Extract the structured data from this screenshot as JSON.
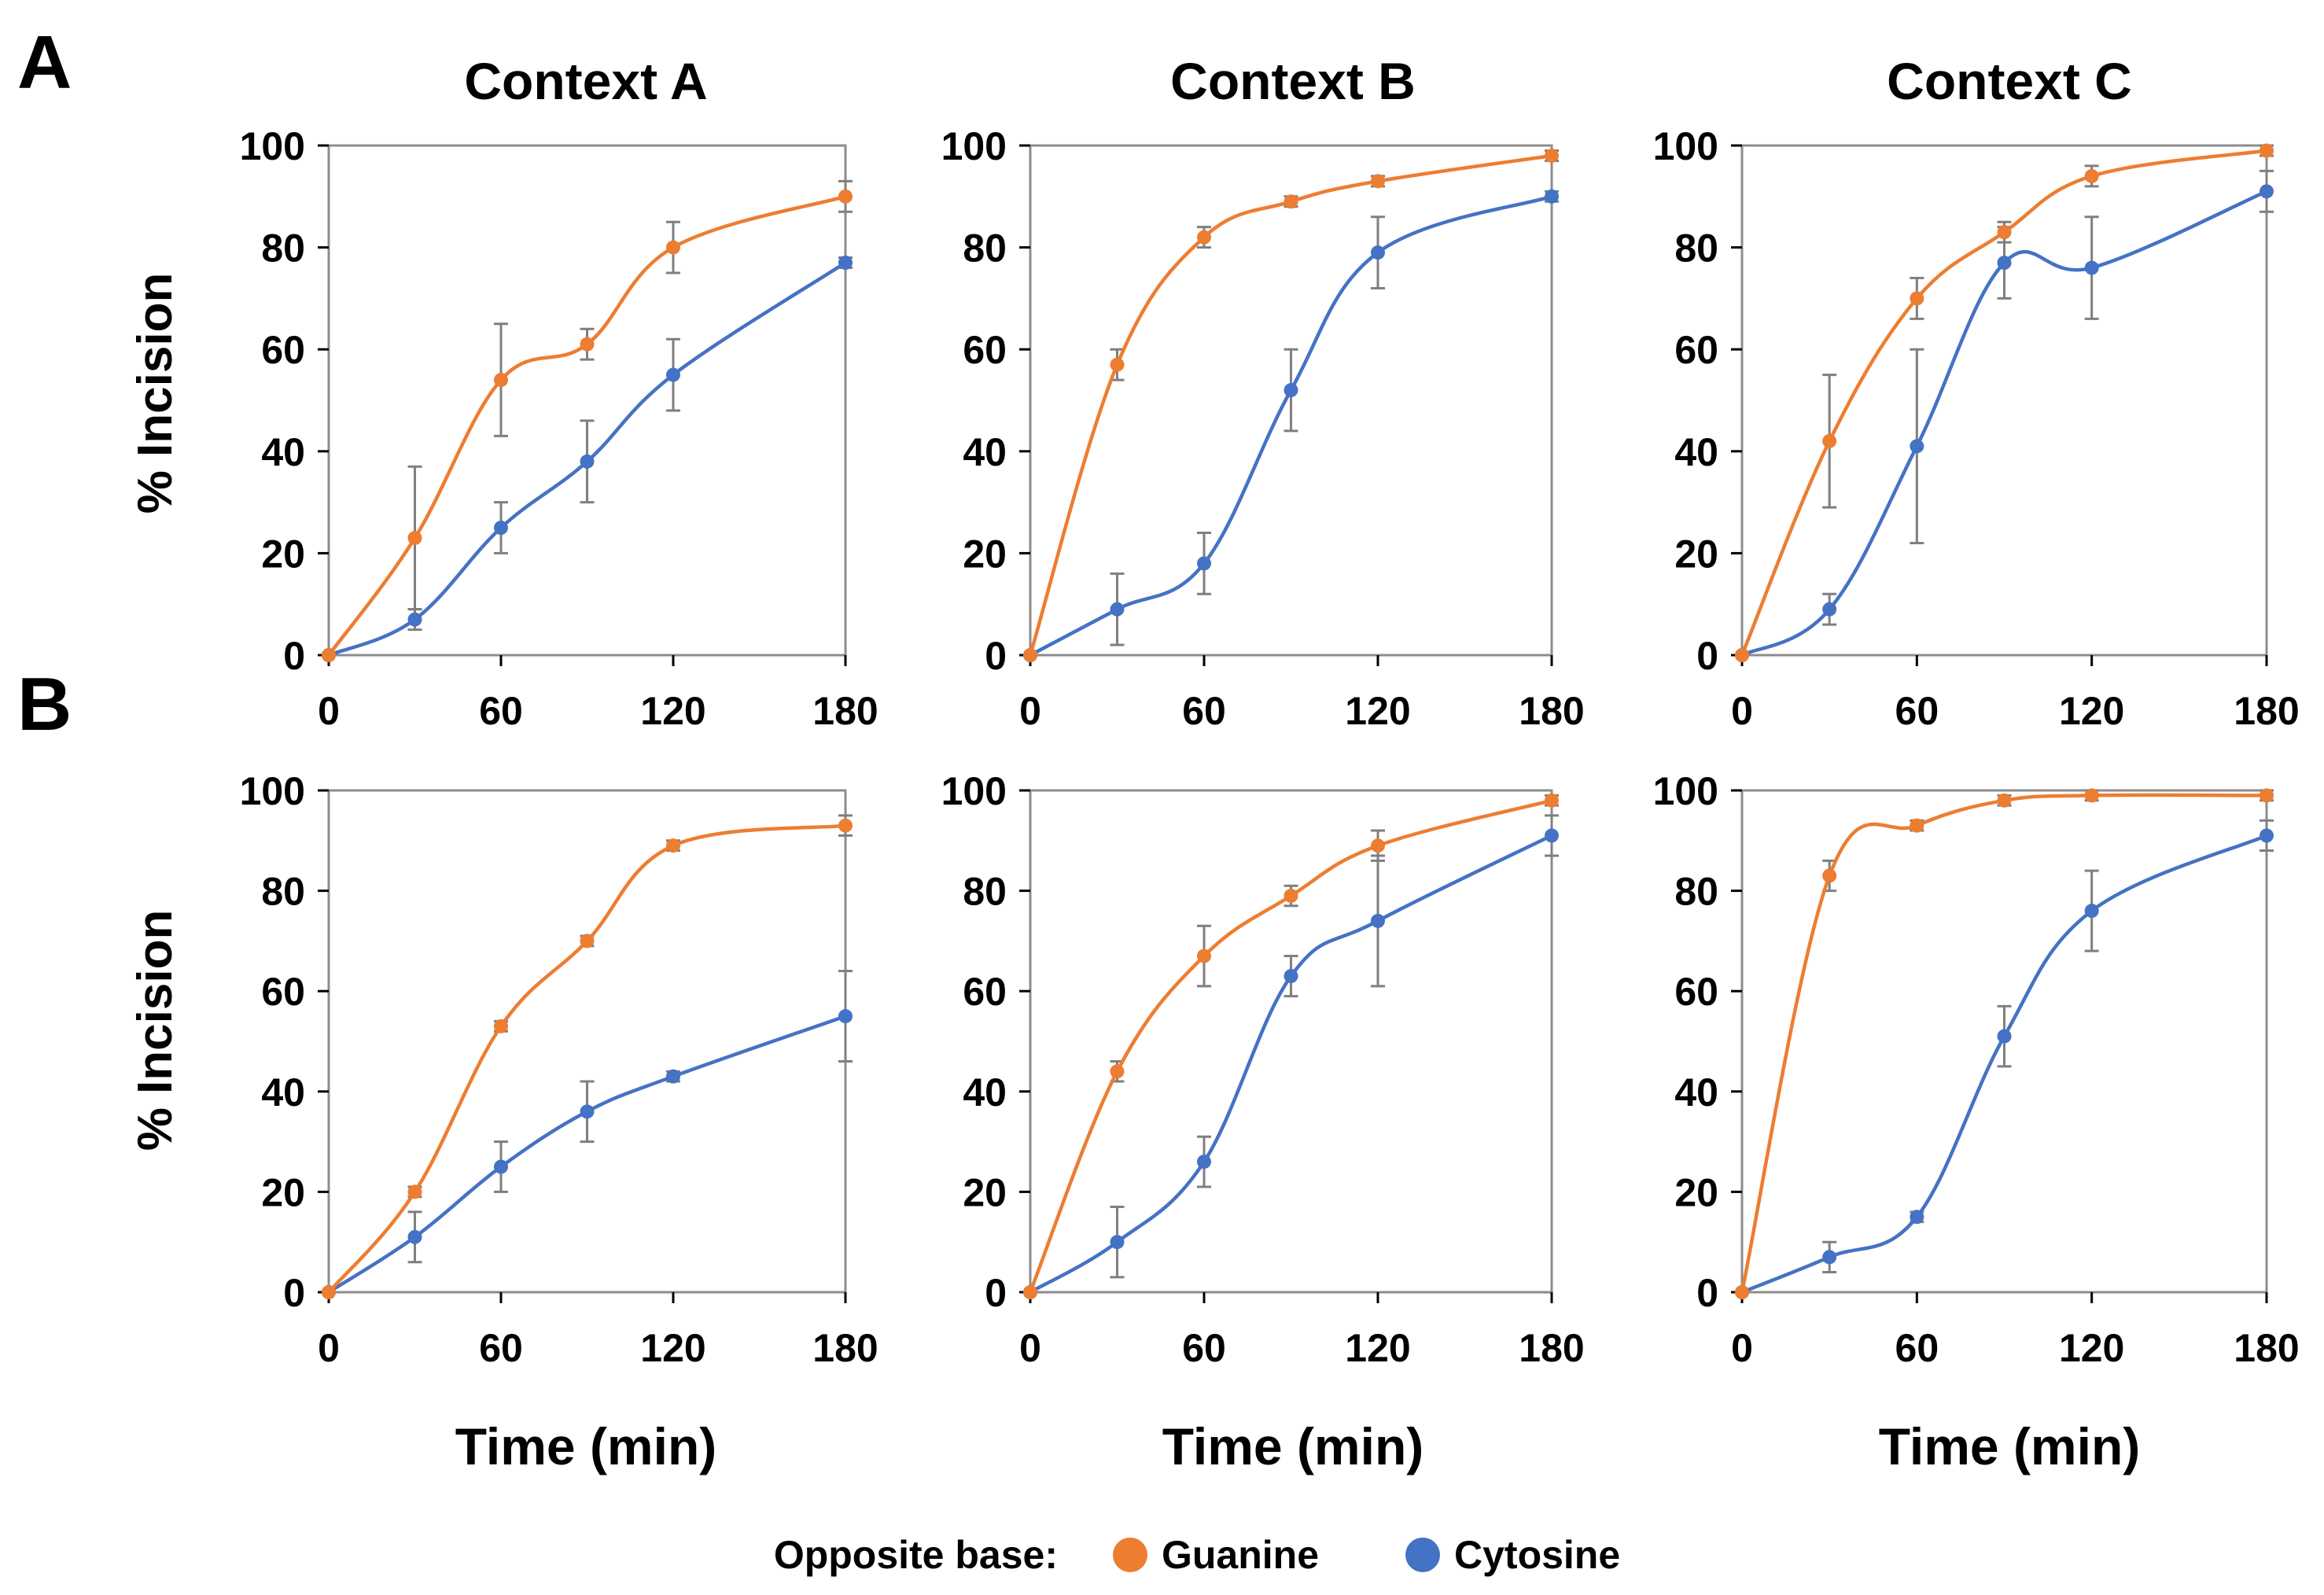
{
  "figure": {
    "panel_labels": [
      "A",
      "B"
    ],
    "column_titles": [
      "Context A",
      "Context B",
      "Context C"
    ],
    "ylabel": "% Incision",
    "xlabel": "Time (min)",
    "legend": {
      "title": "Opposite base:",
      "items": [
        {
          "label": "Guanine",
          "color": "#ED7D31"
        },
        {
          "label": "Cytosine",
          "color": "#4472C4"
        }
      ]
    },
    "colors": {
      "guanine": "#ED7D31",
      "cytosine": "#4472C4",
      "error_bar": "#7f7f7f",
      "axis": "#000000"
    }
  },
  "chart_data": [
    {
      "type": "line",
      "row": "A",
      "column": "Context A",
      "title": "Context A",
      "xlabel": "",
      "ylabel": "% Incision",
      "x": [
        0,
        30,
        60,
        90,
        120,
        180
      ],
      "xlim": [
        0,
        180
      ],
      "ylim": [
        0,
        100
      ],
      "xticks": [
        0,
        60,
        120,
        180
      ],
      "yticks": [
        0,
        20,
        40,
        60,
        80,
        100
      ],
      "grid": false,
      "series": [
        {
          "name": "Guanine",
          "values": [
            0,
            23,
            54,
            61,
            80,
            90
          ],
          "err": [
            0,
            14,
            11,
            3,
            5,
            3
          ]
        },
        {
          "name": "Cytosine",
          "values": [
            0,
            7,
            25,
            38,
            55,
            77
          ],
          "err": [
            0,
            2,
            5,
            8,
            7,
            1
          ]
        }
      ]
    },
    {
      "type": "line",
      "row": "A",
      "column": "Context B",
      "title": "Context B",
      "xlabel": "",
      "ylabel": "",
      "x": [
        0,
        30,
        60,
        90,
        120,
        180
      ],
      "xlim": [
        0,
        180
      ],
      "ylim": [
        0,
        100
      ],
      "xticks": [
        0,
        60,
        120,
        180
      ],
      "yticks": [
        0,
        20,
        40,
        60,
        80,
        100
      ],
      "grid": false,
      "series": [
        {
          "name": "Guanine",
          "values": [
            0,
            57,
            82,
            89,
            93,
            98
          ],
          "err": [
            0,
            3,
            2,
            1,
            1,
            1
          ]
        },
        {
          "name": "Cytosine",
          "values": [
            0,
            9,
            18,
            52,
            79,
            90
          ],
          "err": [
            0,
            7,
            6,
            8,
            7,
            1
          ]
        }
      ]
    },
    {
      "type": "line",
      "row": "A",
      "column": "Context C",
      "title": "Context C",
      "xlabel": "",
      "ylabel": "",
      "x": [
        0,
        30,
        60,
        90,
        120,
        180
      ],
      "xlim": [
        0,
        180
      ],
      "ylim": [
        0,
        100
      ],
      "xticks": [
        0,
        60,
        120,
        180
      ],
      "yticks": [
        0,
        20,
        40,
        60,
        80,
        100
      ],
      "grid": false,
      "series": [
        {
          "name": "Guanine",
          "values": [
            0,
            42,
            70,
            83,
            94,
            99
          ],
          "err": [
            0,
            13,
            4,
            2,
            2,
            1
          ]
        },
        {
          "name": "Cytosine",
          "values": [
            0,
            9,
            41,
            77,
            76,
            91
          ],
          "err": [
            0,
            3,
            19,
            7,
            10,
            4
          ]
        }
      ]
    },
    {
      "type": "line",
      "row": "B",
      "column": "Context A",
      "title": "",
      "xlabel": "Time (min)",
      "ylabel": "% Incision",
      "x": [
        0,
        30,
        60,
        90,
        120,
        180
      ],
      "xlim": [
        0,
        180
      ],
      "ylim": [
        0,
        100
      ],
      "xticks": [
        0,
        60,
        120,
        180
      ],
      "yticks": [
        0,
        20,
        40,
        60,
        80,
        100
      ],
      "grid": false,
      "series": [
        {
          "name": "Guanine",
          "values": [
            0,
            20,
            53,
            70,
            89,
            93
          ],
          "err": [
            0,
            1,
            1,
            1,
            1,
            2
          ]
        },
        {
          "name": "Cytosine",
          "values": [
            0,
            11,
            25,
            36,
            43,
            55
          ],
          "err": [
            0,
            5,
            5,
            6,
            1,
            9
          ]
        }
      ]
    },
    {
      "type": "line",
      "row": "B",
      "column": "Context B",
      "title": "",
      "xlabel": "Time (min)",
      "ylabel": "",
      "x": [
        0,
        30,
        60,
        90,
        120,
        180
      ],
      "xlim": [
        0,
        180
      ],
      "ylim": [
        0,
        100
      ],
      "xticks": [
        0,
        60,
        120,
        180
      ],
      "yticks": [
        0,
        20,
        40,
        60,
        80,
        100
      ],
      "grid": false,
      "series": [
        {
          "name": "Guanine",
          "values": [
            0,
            44,
            67,
            79,
            89,
            98
          ],
          "err": [
            0,
            2,
            6,
            2,
            3,
            1
          ]
        },
        {
          "name": "Cytosine",
          "values": [
            0,
            10,
            26,
            63,
            74,
            91
          ],
          "err": [
            0,
            7,
            5,
            4,
            13,
            4
          ]
        }
      ]
    },
    {
      "type": "line",
      "row": "B",
      "column": "Context C",
      "title": "",
      "xlabel": "Time (min)",
      "ylabel": "",
      "x": [
        0,
        30,
        60,
        90,
        120,
        180
      ],
      "xlim": [
        0,
        180
      ],
      "ylim": [
        0,
        100
      ],
      "xticks": [
        0,
        60,
        120,
        180
      ],
      "yticks": [
        0,
        20,
        40,
        60,
        80,
        100
      ],
      "grid": false,
      "series": [
        {
          "name": "Guanine",
          "values": [
            0,
            83,
            93,
            98,
            99,
            99
          ],
          "err": [
            0,
            3,
            1,
            1,
            1,
            1
          ]
        },
        {
          "name": "Cytosine",
          "values": [
            0,
            7,
            15,
            51,
            76,
            91
          ],
          "err": [
            0,
            3,
            1,
            6,
            8,
            3
          ]
        }
      ]
    }
  ]
}
